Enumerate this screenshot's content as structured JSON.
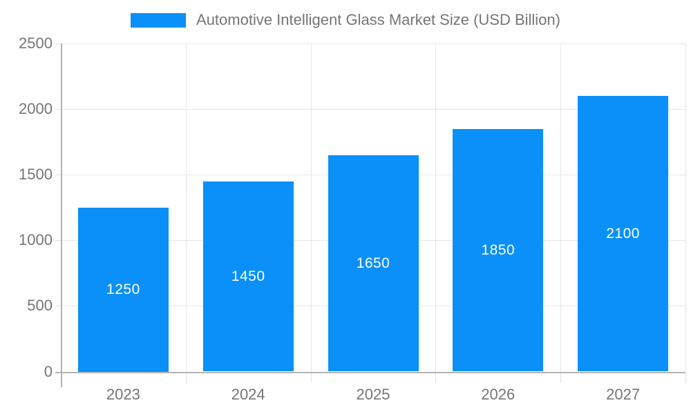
{
  "chart_data": {
    "type": "bar",
    "title": "Automotive Intelligent Glass Market Size (USD Billion)",
    "legend": {
      "position": "top",
      "entries": [
        {
          "label": "Automotive Intelligent Glass Market Size (USD Billion)",
          "color": "#0a90f8"
        }
      ]
    },
    "categories": [
      "2023",
      "2024",
      "2025",
      "2026",
      "2027"
    ],
    "series": [
      {
        "name": "Automotive Intelligent Glass Market Size (USD Billion)",
        "values": [
          1250,
          1450,
          1650,
          1850,
          2100
        ]
      }
    ],
    "data_labels": [
      "1250",
      "1450",
      "1650",
      "1850",
      "2100"
    ],
    "xlabel": "",
    "ylabel": "",
    "ylim": [
      0,
      2500
    ],
    "ytick_step": 500,
    "yticks": [
      0,
      500,
      1000,
      1500,
      2000,
      2500
    ],
    "grid": true,
    "colors": {
      "bar": "#0a90f8",
      "bar_value_text": "#ffffff",
      "grid_line": "#e6e6e6",
      "axis_line": "#b3b3b3",
      "tick_text": "#757575",
      "title_text": "#757575",
      "background": "#ffffff"
    }
  }
}
